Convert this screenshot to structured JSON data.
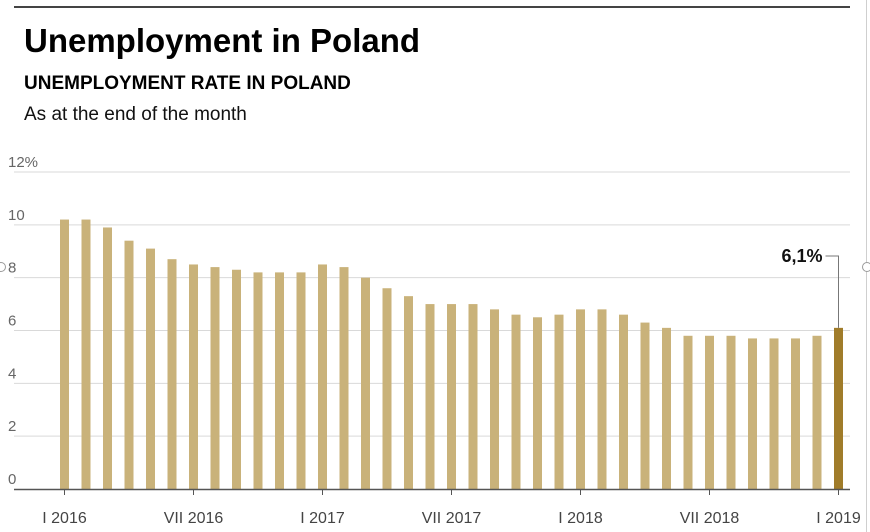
{
  "header": {
    "title": "Unemployment in Poland",
    "subtitle": "UNEMPLOYMENT RATE IN POLAND",
    "note": "As at the end of the month"
  },
  "colors": {
    "bar": "#c9b27a",
    "bar_highlight": "#a07c2a",
    "grid": "#d9d9d9",
    "axis": "#555555"
  },
  "chart_data": {
    "type": "bar",
    "title": "UNEMPLOYMENT RATE IN POLAND",
    "subtitle": "As at the end of the month",
    "xlabel": "",
    "ylabel": "",
    "ylim": [
      0,
      12
    ],
    "y_ticks": [
      0,
      2,
      4,
      6,
      8,
      10,
      12
    ],
    "y_tick_labels": [
      "0",
      "2",
      "4",
      "6",
      "8",
      "10",
      "12%"
    ],
    "categories": [
      "2016-01",
      "2016-02",
      "2016-03",
      "2016-04",
      "2016-05",
      "2016-06",
      "2016-07",
      "2016-08",
      "2016-09",
      "2016-10",
      "2016-11",
      "2016-12",
      "2017-01",
      "2017-02",
      "2017-03",
      "2017-04",
      "2017-05",
      "2017-06",
      "2017-07",
      "2017-08",
      "2017-09",
      "2017-10",
      "2017-11",
      "2017-12",
      "2018-01",
      "2018-02",
      "2018-03",
      "2018-04",
      "2018-05",
      "2018-06",
      "2018-07",
      "2018-08",
      "2018-09",
      "2018-10",
      "2018-11",
      "2018-12",
      "2019-01"
    ],
    "values": [
      10.2,
      10.2,
      9.9,
      9.4,
      9.1,
      8.7,
      8.5,
      8.4,
      8.3,
      8.2,
      8.2,
      8.2,
      8.5,
      8.4,
      8.0,
      7.6,
      7.3,
      7.0,
      7.0,
      7.0,
      6.8,
      6.6,
      6.5,
      6.6,
      6.8,
      6.8,
      6.6,
      6.3,
      6.1,
      5.8,
      5.8,
      5.8,
      5.7,
      5.7,
      5.7,
      5.8,
      6.1
    ],
    "x_tick_labels": [
      {
        "index": 0,
        "label": "I 2016"
      },
      {
        "index": 6,
        "label": "VII 2016"
      },
      {
        "index": 12,
        "label": "I 2017"
      },
      {
        "index": 18,
        "label": "VII  2017"
      },
      {
        "index": 24,
        "label": "I 2018"
      },
      {
        "index": 30,
        "label": "VII 2018"
      },
      {
        "index": 36,
        "label": "I 2019"
      }
    ],
    "highlight_index": 36,
    "annotation": {
      "index": 36,
      "text": "6,1%"
    },
    "grid": true,
    "legend": "none"
  }
}
